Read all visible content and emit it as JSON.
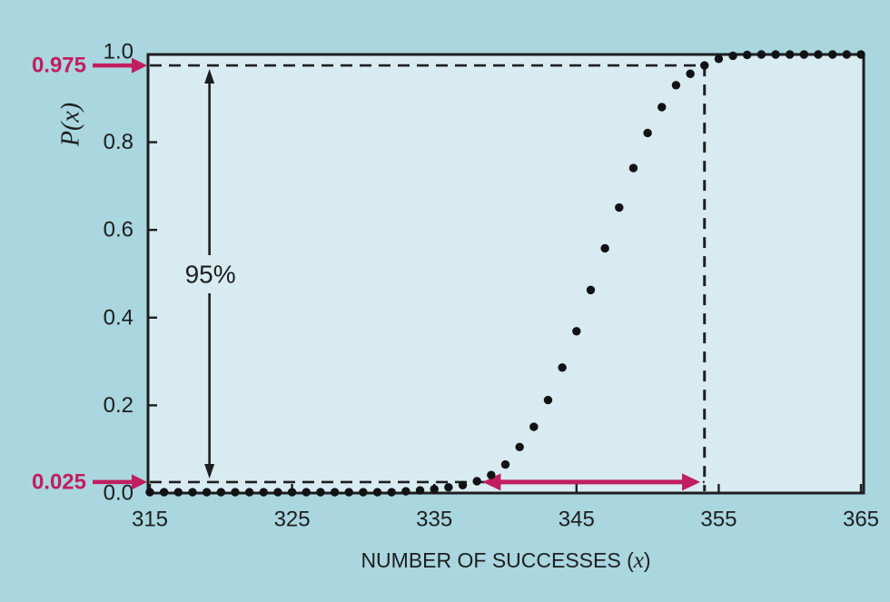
{
  "figure": {
    "background_color": "#a9d6df",
    "plot_background_color": "#d8ebf1",
    "axis_color": "#1c1e1f",
    "accent_color": "#c11d5f"
  },
  "chart_data": {
    "type": "scatter",
    "title": "",
    "xlabel": "NUMBER OF SUCCESSES (x)",
    "ylabel": "P(x)",
    "xlim": [
      315,
      365
    ],
    "ylim": [
      0.0,
      1.0
    ],
    "x_ticks": [
      315,
      325,
      335,
      345,
      355,
      365
    ],
    "y_ticks": [
      "0.0",
      "0.2",
      "0.4",
      "0.6",
      "0.8",
      "1.0"
    ],
    "grid": false,
    "legend": false,
    "x": [
      315,
      316,
      317,
      318,
      319,
      320,
      321,
      322,
      323,
      324,
      325,
      326,
      327,
      328,
      329,
      330,
      331,
      332,
      333,
      334,
      335,
      336,
      337,
      338,
      339,
      340,
      341,
      342,
      343,
      344,
      345,
      346,
      347,
      348,
      349,
      350,
      351,
      352,
      353,
      354,
      355,
      356,
      357,
      358,
      359,
      360,
      361,
      362,
      363,
      364,
      365
    ],
    "p": [
      0.002,
      0.002,
      0.002,
      0.002,
      0.002,
      0.002,
      0.002,
      0.002,
      0.002,
      0.002,
      0.002,
      0.002,
      0.002,
      0.002,
      0.002,
      0.002,
      0.002,
      0.002,
      0.004,
      0.006,
      0.009,
      0.013,
      0.018,
      0.027,
      0.041,
      0.065,
      0.105,
      0.151,
      0.212,
      0.286,
      0.369,
      0.463,
      0.558,
      0.651,
      0.741,
      0.821,
      0.88,
      0.93,
      0.956,
      0.975,
      0.99,
      0.997,
      0.999,
      1.0,
      1.0,
      1.0,
      1.0,
      1.0,
      1.0,
      1.0,
      1.0
    ],
    "annotations": {
      "upper_quantile_label": "0.975",
      "upper_quantile_value": 0.975,
      "lower_quantile_label": "0.025",
      "lower_quantile_value": 0.025,
      "interval_label": "95%",
      "interval_label_x": 319,
      "dashed_vertical_x": 354,
      "span_arrow_x_from": 338.4,
      "span_arrow_x_to": 353.7,
      "span_arrow_p": 0.025
    }
  }
}
